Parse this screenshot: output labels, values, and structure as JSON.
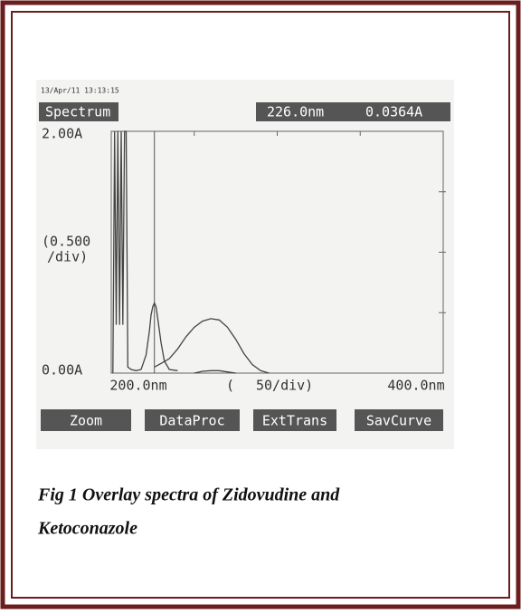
{
  "chart_data": {
    "type": "line",
    "timestamp": "13/Apr/11 13:13:15",
    "mode": "Spectrum",
    "cursor": {
      "x": 226,
      "x_label": "226.0nm",
      "value": 0.0364,
      "value_label": "0.0364A"
    },
    "y_scale_label": [
      "(0.500",
      "/div)"
    ],
    "x_scale_label": [
      "(",
      "50/div)"
    ],
    "xlim": [
      200,
      400
    ],
    "ylim": [
      0,
      2
    ],
    "xticks": [
      {
        "value": 200,
        "label": "200.0nm"
      },
      {
        "value": 400,
        "label": "400.0nm"
      }
    ],
    "yticks": [
      {
        "value": 0,
        "label": "0.00A"
      },
      {
        "value": 2,
        "label": "2.00A"
      }
    ],
    "minor_xticks": [
      250,
      300,
      350
    ],
    "minor_yticks": [
      0.5,
      1,
      1.5
    ],
    "grid": false,
    "series": [
      {
        "color": "#444",
        "x": [
          201,
          202,
          203,
          204,
          205,
          206,
          207,
          208,
          209,
          210,
          212,
          215,
          218,
          221,
          223,
          224,
          225,
          226,
          227,
          228,
          230,
          232,
          235,
          240
        ],
        "values": [
          0,
          2,
          0.4,
          2,
          0.4,
          2,
          0.4,
          2,
          2,
          0.05,
          0.03,
          0.02,
          0.03,
          0.15,
          0.35,
          0.48,
          0.55,
          0.58,
          0.55,
          0.45,
          0.25,
          0.1,
          0.03,
          0.02
        ]
      },
      {
        "color": "#444",
        "x": [
          226,
          230,
          235,
          240,
          245,
          250,
          255,
          260,
          265,
          270,
          275,
          280,
          285,
          290,
          295
        ],
        "values": [
          0.05,
          0.08,
          0.12,
          0.2,
          0.3,
          0.38,
          0.43,
          0.45,
          0.44,
          0.38,
          0.28,
          0.16,
          0.07,
          0.02,
          0
        ]
      },
      {
        "color": "#444",
        "x": [
          250,
          255,
          260,
          265,
          270,
          275
        ],
        "values": [
          0,
          0.015,
          0.02,
          0.02,
          0.01,
          0
        ]
      }
    ],
    "buttons": [
      "Zoom",
      "DataProc",
      "ExtTrans",
      "SavCurve"
    ]
  },
  "caption": [
    "Fig 1 Overlay spectra of Zidovudine and",
    "Ketoconazole"
  ]
}
